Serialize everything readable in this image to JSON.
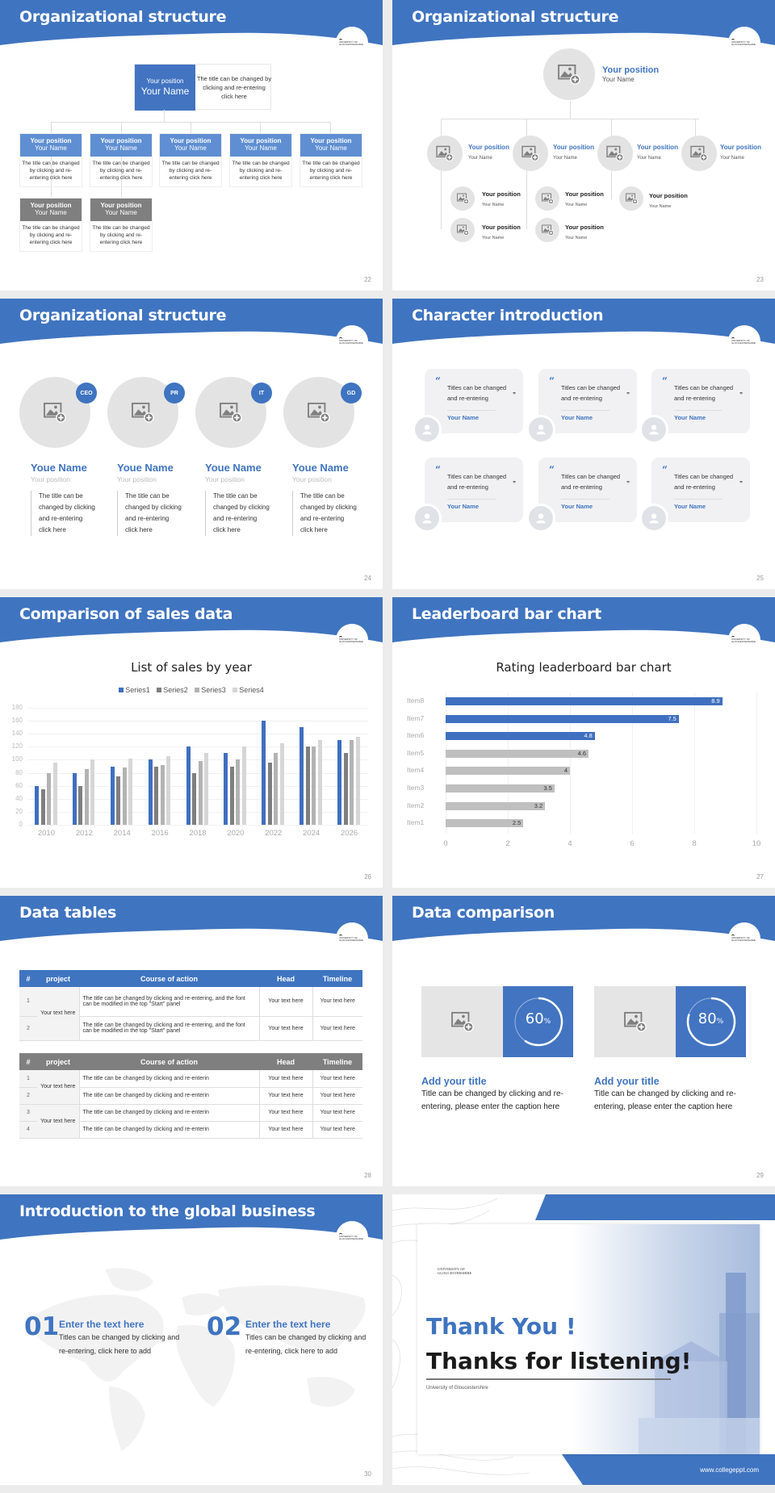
{
  "theme": {
    "accent": "#3f74c0",
    "gray_header": "#7f7f7f",
    "placeholder_bg": "#e4e3e4"
  },
  "slides": {
    "s22": {
      "title": "Organizational structure",
      "page": "22",
      "top": {
        "position": "Your position",
        "name": "Your Name",
        "desc": "The title can be changed by clicking and re-entering click here"
      },
      "row1": [
        {
          "position": "Your position",
          "name": "Your Name",
          "desc": "The title can be changed by clicking and re-entering click here"
        },
        {
          "position": "Your position",
          "name": "Your Name",
          "desc": "The title can be changed by clicking and re-entering click here"
        },
        {
          "position": "Your position",
          "name": "Your Name",
          "desc": "The title can be changed by clicking and re-entering click here"
        },
        {
          "position": "Your position",
          "name": "Your Name",
          "desc": "The title can be changed by clicking and re-entering click here"
        },
        {
          "position": "Your position",
          "name": "Your Name",
          "desc": "The title can be changed by clicking and re-entering click here"
        }
      ],
      "row2": [
        {
          "position": "Your position",
          "name": "Your Name",
          "desc": "The title can be changed by clicking and re-entering click here"
        },
        {
          "position": "Your position",
          "name": "Your Name",
          "desc": "The title can be changed by clicking and re-entering click here"
        }
      ]
    },
    "s23": {
      "title": "Organizational structure",
      "page": "23",
      "top": {
        "position": "Your position",
        "name": "Your Name"
      },
      "level2": [
        {
          "position": "Your position",
          "name": "Your Name"
        },
        {
          "position": "Your position",
          "name": "Your Name"
        },
        {
          "position": "Your position",
          "name": "Your Name"
        },
        {
          "position": "Your position",
          "name": "Your Name"
        }
      ],
      "level3": [
        {
          "position": "Your position",
          "name": "Your Name"
        },
        {
          "position": "Your position",
          "name": "Your Name"
        },
        {
          "position": "Your position",
          "name": "Your Name"
        },
        {
          "position": "Your position",
          "name": "Your Name"
        },
        {
          "position": "Your position",
          "name": "Your Name"
        }
      ]
    },
    "s24": {
      "title": "Organizational structure",
      "page": "24",
      "people": [
        {
          "badge": "CEO",
          "name": "Youe Name",
          "position": "Your position",
          "desc": "The title can be changed by clicking and re-entering click here"
        },
        {
          "badge": "PR",
          "name": "Youe Name",
          "position": "Your position",
          "desc": "The title can be changed by clicking and re-entering click here"
        },
        {
          "badge": "IT",
          "name": "Youe Name",
          "position": "Your position",
          "desc": "The title can be changed by clicking and re-entering click here"
        },
        {
          "badge": "GD",
          "name": "Youe Name",
          "position": "Your position",
          "desc": "The title can be changed by clicking and re-entering click here"
        }
      ]
    },
    "s25": {
      "title": "Character introduction",
      "page": "25",
      "cards": [
        {
          "quote": "Titles can be changed and re-entering",
          "name": "Your Name"
        },
        {
          "quote": "Titles can be changed and re-entering",
          "name": "Your Name"
        },
        {
          "quote": "Titles can be changed and re-entering",
          "name": "Your Name"
        },
        {
          "quote": "Titles can be changed and re-entering",
          "name": "Your Name"
        },
        {
          "quote": "Titles can be changed and re-entering",
          "name": "Your Name"
        },
        {
          "quote": "Titles can be changed and re-entering",
          "name": "Your Name"
        }
      ]
    },
    "s26": {
      "title": "Comparison of sales data",
      "page": "26"
    },
    "s27": {
      "title": "Leaderboard bar chart",
      "page": "27"
    },
    "s28": {
      "title": "Data tables",
      "page": "28",
      "headers": [
        "#",
        "project",
        "Course of action",
        "Head",
        "Timeline"
      ],
      "table1": {
        "rows": [
          {
            "n": "1",
            "action": "The title can be changed by clicking and re-entering, and the font can be modified in the top \"Start\" panel",
            "head": "Your text here",
            "timeline": "Your text here"
          },
          {
            "n": "2",
            "action": "The title can be changed by clicking and re-entering, and the font can be modified in the top \"Start\" panel",
            "head": "Your text here",
            "timeline": "Your text here"
          }
        ],
        "project": "Your text here"
      },
      "table2": {
        "rows": [
          {
            "n": "1",
            "action": "The title can be changed by clicking and re-enterin",
            "head": "Your text here",
            "timeline": "Your text here"
          },
          {
            "n": "2",
            "action": "The title can be changed by clicking and re-enterin",
            "head": "Your text here",
            "timeline": "Your text here"
          },
          {
            "n": "3",
            "action": "The title can be changed by clicking and re-enterin",
            "head": "Your text here",
            "timeline": "Your text here"
          },
          {
            "n": "4",
            "action": "The title can be changed by clicking and re-enterin",
            "head": "Your text here",
            "timeline": "Your text here"
          }
        ],
        "projects": [
          "Your text here",
          "Your text here"
        ]
      }
    },
    "s29": {
      "title": "Data comparison",
      "page": "29",
      "items": [
        {
          "percent": "60",
          "unit": "%",
          "value": 60,
          "title": "Add your title",
          "desc": "Title can be changed by clicking and re-entering, please enter the caption here"
        },
        {
          "percent": "80",
          "unit": "%",
          "value": 80,
          "title": "Add your title",
          "desc": "Title can be changed by clicking and re-entering, please enter the caption here"
        }
      ]
    },
    "s30": {
      "title": "Introduction to the global business",
      "page": "30",
      "items": [
        {
          "num": "01",
          "title": "Enter the text here",
          "desc": "Titles can be changed by clicking and re-entering, click here to add"
        },
        {
          "num": "02",
          "title": "Enter the text here",
          "desc": "Titles can be changed by clicking and re-entering, click here to add"
        }
      ]
    },
    "s31": {
      "logo_text": "UNIVERSITY OF GLOUCESTERSHIRE",
      "thank_you": "Thank You !",
      "thanks": "Thanks for listening!",
      "university": "University of Gloucestershire",
      "website": "www.collegeppt.com"
    }
  },
  "chart_data": [
    {
      "type": "bar",
      "title": "List of sales by year",
      "categories": [
        "2010",
        "2012",
        "2014",
        "2016",
        "2018",
        "2020",
        "2022",
        "2024",
        "2026"
      ],
      "series": [
        {
          "name": "Series1",
          "color": "#3f6fbf",
          "values": [
            60,
            80,
            90,
            100,
            120,
            110,
            160,
            150,
            130
          ]
        },
        {
          "name": "Series2",
          "color": "#7f7f7f",
          "values": [
            55,
            60,
            75,
            90,
            80,
            90,
            96,
            120,
            110
          ]
        },
        {
          "name": "Series3",
          "color": "#b3b3b3",
          "values": [
            80,
            86,
            88,
            92,
            98,
            100,
            110,
            120,
            130
          ]
        },
        {
          "name": "Series4",
          "color": "#d6d6d6",
          "values": [
            95,
            100,
            102,
            105,
            110,
            120,
            126,
            130,
            135
          ]
        }
      ],
      "xlabel": "",
      "ylabel": "",
      "ylim": [
        0,
        180
      ],
      "yticks": [
        "0",
        "20",
        "40",
        "60",
        "80",
        "100",
        "120",
        "140",
        "160",
        "180"
      ],
      "legend_position": "top",
      "grid": true
    },
    {
      "type": "bar",
      "orientation": "horizontal",
      "title": "Rating leaderboard bar chart",
      "categories": [
        "Item8",
        "Item7",
        "Item6",
        "Item5",
        "Item4",
        "Item3",
        "Item2",
        "Item1"
      ],
      "values": [
        8.9,
        7.5,
        4.8,
        4.6,
        4,
        3.5,
        3.2,
        2.5
      ],
      "labels": [
        "8.9",
        "7.5",
        "4.8",
        "4.6",
        "4",
        "3.5",
        "3.2",
        "2.5"
      ],
      "colors": [
        "#3f6fbf",
        "#3f6fbf",
        "#3f6fbf",
        "#bfbfbf",
        "#bfbfbf",
        "#bfbfbf",
        "#bfbfbf",
        "#bfbfbf"
      ],
      "xlim": [
        0,
        10
      ],
      "xticks": [
        "0",
        "2",
        "4",
        "6",
        "8",
        "10"
      ],
      "grid": true
    }
  ]
}
